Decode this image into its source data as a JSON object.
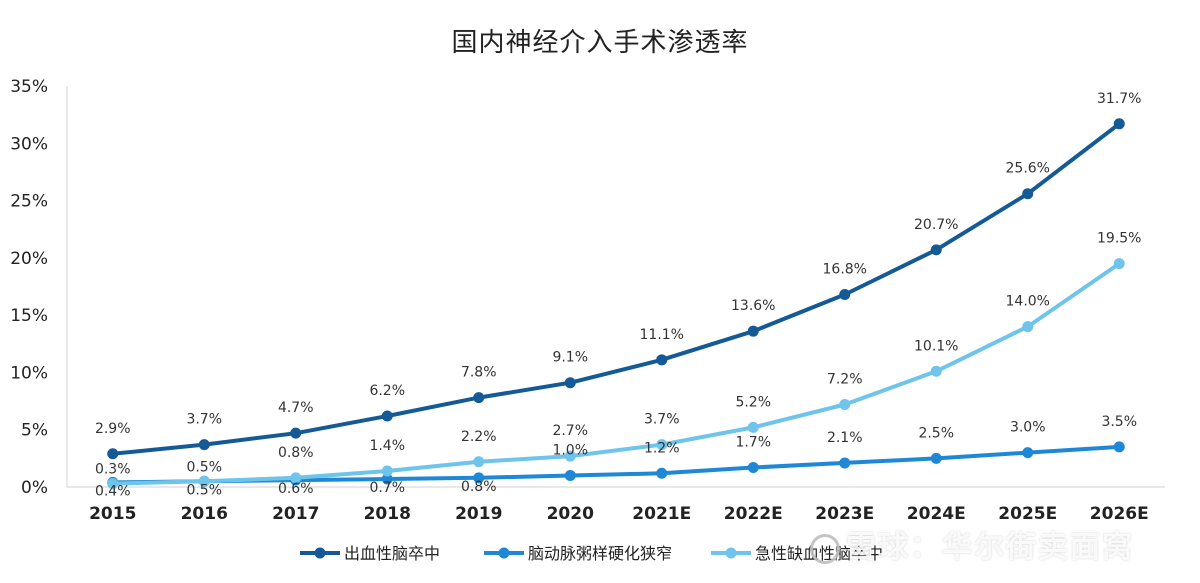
{
  "chart_data": {
    "type": "line",
    "title": "国内神经介入手术渗透率",
    "categories": [
      "2015",
      "2016",
      "2017",
      "2018",
      "2019",
      "2020",
      "2021E",
      "2022E",
      "2023E",
      "2024E",
      "2025E",
      "2026E"
    ],
    "ylim": [
      0,
      35
    ],
    "yticks": [
      "0%",
      "5%",
      "10%",
      "15%",
      "20%",
      "25%",
      "30%",
      "35%"
    ],
    "xlabel": "",
    "ylabel": "",
    "grid": false,
    "legend_position": "bottom",
    "series": [
      {
        "name": "出血性脑卒中",
        "color": "#145A96",
        "values": [
          2.9,
          3.7,
          4.7,
          6.2,
          7.8,
          9.1,
          11.1,
          13.6,
          16.8,
          20.7,
          25.6,
          31.7
        ],
        "labels": [
          "2.9%",
          "3.7%",
          "4.7%",
          "6.2%",
          "7.8%",
          "9.1%",
          "11.1%",
          "13.6%",
          "16.8%",
          "20.7%",
          "25.6%",
          "31.7%"
        ]
      },
      {
        "name": "脑动脉粥样硬化狭窄",
        "color": "#1F88D6",
        "values": [
          0.4,
          0.5,
          0.6,
          0.7,
          0.8,
          1.0,
          1.2,
          1.7,
          2.1,
          2.5,
          3.0,
          3.5
        ],
        "labels": [
          "0.4%",
          "0.5%",
          "0.6%",
          "0.7%",
          "0.8%",
          "1.0%",
          "1.2%",
          "1.7%",
          "2.1%",
          "2.5%",
          "3.0%",
          "3.5%"
        ]
      },
      {
        "name": "急性缺血性脑卒中",
        "color": "#6EC4EA",
        "values": [
          0.3,
          0.5,
          0.8,
          1.4,
          2.2,
          2.7,
          3.7,
          5.2,
          7.2,
          10.1,
          14.0,
          19.5
        ],
        "labels": [
          "0.3%",
          "0.5%",
          "0.8%",
          "1.4%",
          "2.2%",
          "2.7%",
          "3.7%",
          "5.2%",
          "7.2%",
          "10.1%",
          "14.0%",
          "19.5%"
        ]
      }
    ]
  },
  "watermark": "雪球：华尔街卖面窝"
}
